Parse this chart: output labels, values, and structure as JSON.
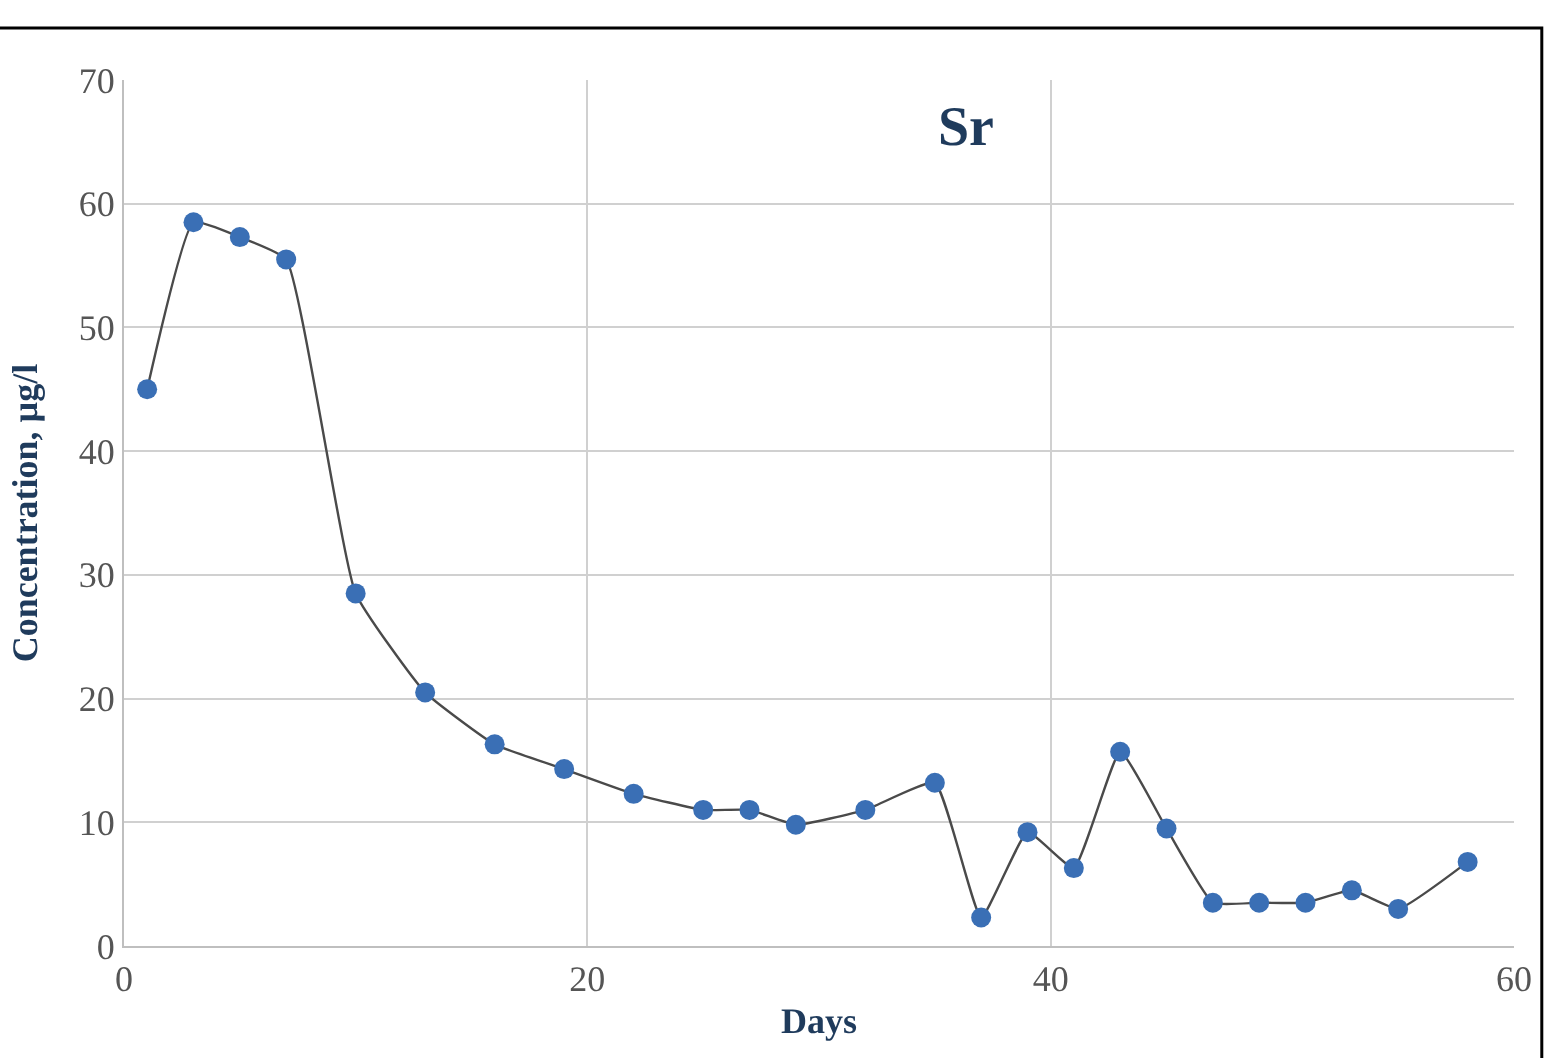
{
  "chart_data": {
    "type": "line",
    "title": "Sr",
    "xlabel": "Days",
    "ylabel": "Concentration, µg/l",
    "x": [
      1,
      3,
      5,
      7,
      10,
      13,
      16,
      19,
      22,
      25,
      27,
      29,
      32,
      35,
      37,
      39,
      41,
      43,
      45,
      47,
      49,
      51,
      53,
      55,
      58
    ],
    "series": [
      {
        "color": "#3a6fb5",
        "values": [
          45,
          58.5,
          57.3,
          55.5,
          28.5,
          20.5,
          16.3,
          14.3,
          12.3,
          11,
          11,
          9.8,
          11,
          13.2,
          2.3,
          9.2,
          6.3,
          15.7,
          9.5,
          3.5,
          3.5,
          3.5,
          4.5,
          3,
          6.8
        ]
      }
    ],
    "xlim": [
      0,
      60
    ],
    "xticks": [
      0,
      20,
      40,
      60
    ],
    "ylim": [
      0,
      70
    ],
    "yticks": [
      0,
      10,
      20,
      30,
      40,
      50,
      60,
      70
    ],
    "grid": true,
    "marker": "circle",
    "line_style": "solid",
    "legend": false
  }
}
